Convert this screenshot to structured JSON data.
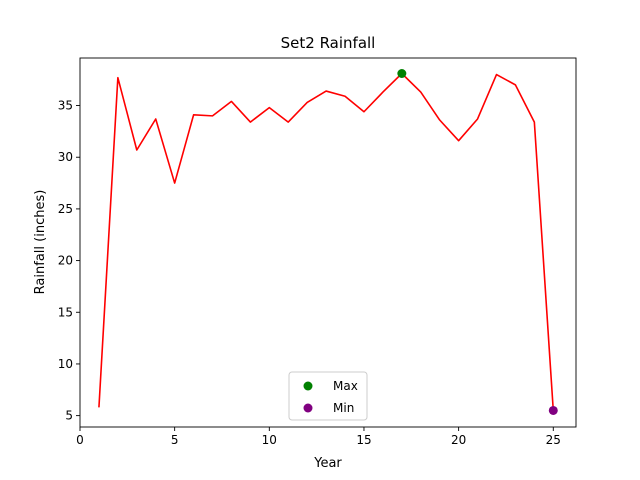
{
  "chart_data": {
    "type": "line",
    "title": "Set2 Rainfall",
    "xlabel": "Year",
    "ylabel": "Rainfall (inches)",
    "xlim": [
      0,
      26.2
    ],
    "ylim": [
      3.9,
      39.6
    ],
    "xticks": [
      0,
      5,
      10,
      15,
      20,
      25
    ],
    "yticks": [
      5,
      10,
      15,
      20,
      25,
      30,
      35
    ],
    "grid": false,
    "legend_position": "bottom-center",
    "series": [
      {
        "color": "#ff0000",
        "x": [
          1,
          2,
          3,
          4,
          5,
          6,
          7,
          8,
          9,
          10,
          11,
          12,
          13,
          14,
          15,
          16,
          17,
          18,
          19,
          20,
          21,
          22,
          23,
          24,
          25
        ],
        "y": [
          5.8,
          37.7,
          30.7,
          33.7,
          27.5,
          34.1,
          34.0,
          35.4,
          33.4,
          34.8,
          33.4,
          35.3,
          36.4,
          35.9,
          34.4,
          36.3,
          38.1,
          36.3,
          33.6,
          31.6,
          33.7,
          38.0,
          37.0,
          33.4,
          5.5
        ]
      }
    ],
    "markers": [
      {
        "name": "Max",
        "color": "#008000",
        "x": 17,
        "y": 38.1
      },
      {
        "name": "Min",
        "color": "#800080",
        "x": 25,
        "y": 5.5
      }
    ]
  }
}
